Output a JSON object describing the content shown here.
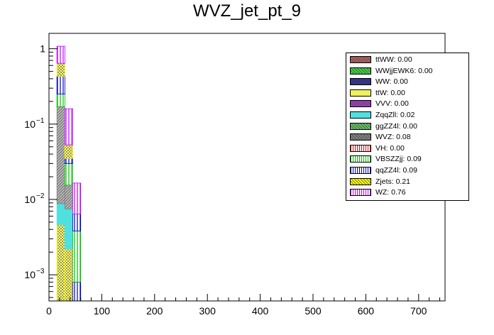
{
  "chart_data": {
    "type": "bar",
    "title": "WVZ_jet_pt_9",
    "xlabel": "",
    "ylabel": "",
    "stacked": true,
    "log_y": true,
    "xlim": [
      0,
      750
    ],
    "ylim": [
      0.00045,
      1.6
    ],
    "x_ticks": [
      "0",
      "100",
      "200",
      "300",
      "400",
      "500",
      "600",
      "700"
    ],
    "y_ticks": [
      {
        "value": 1,
        "label": "1"
      },
      {
        "value": 0.1,
        "label": "10",
        "exp": "−1"
      },
      {
        "value": 0.01,
        "label": "10",
        "exp": "−2"
      },
      {
        "value": 0.001,
        "label": "10",
        "exp": "−3"
      }
    ],
    "bin_edges": [
      15,
      30,
      45,
      60
    ],
    "series": [
      {
        "name": "ttWW: 0.00",
        "color": "#b06060",
        "values": [
          0.0,
          0.0,
          0.0
        ]
      },
      {
        "name": "WWjjEWK6: 0.00",
        "color": "#40d040",
        "values": [
          0.0,
          0.0,
          0.0
        ]
      },
      {
        "name": "WW: 0.00",
        "color": "#303090",
        "values": [
          0.0,
          0.0,
          0.0
        ]
      },
      {
        "name": "ttW: 0.00",
        "color": "#f0f060",
        "values": [
          0.0,
          0.0,
          0.0
        ]
      },
      {
        "name": "VVV: 0.00",
        "color": "#a040c0",
        "values": [
          0.0,
          0.0,
          0.0
        ]
      },
      {
        "name": "ZqqZll: 0.02",
        "color": "#50e0e0",
        "values": [
          0.0046,
          0.0054,
          0.0
        ]
      },
      {
        "name": "ggZZ4l: 0.00",
        "color": "#60c060",
        "values": [
          0.0,
          0.0,
          0.0
        ]
      },
      {
        "name": "WVZ: 0.08",
        "color": "#808080",
        "values": [
          0.0038,
          0.0,
          0.0
        ]
      },
      {
        "name": "VH: 0.00",
        "color": "#ff0000",
        "values": [
          0.0,
          0.0,
          0.0
        ]
      },
      {
        "name": "VBSZZjj: 0.09",
        "color": "#00c000",
        "values": [
          0.0,
          0.0,
          0.0
        ]
      },
      {
        "name": "qqZZ4l: 0.09",
        "color": "#0000c0",
        "values": [
          0.0,
          0.0,
          0.0008
        ]
      },
      {
        "name": "Zjets: 0.21",
        "color": "#ffff00",
        "values": [
          0.0,
          0.0,
          0.0
        ]
      },
      {
        "name": "WZ: 0.76",
        "color": "#c000ff",
        "values": [
          0.0,
          0.0,
          0.0
        ]
      }
    ],
    "bin_layers": [
      [
        {
          "series": "Zjets: 0.21",
          "y0": 0.00045,
          "y1": 0.0046
        },
        {
          "series": "ZqqZll: 0.02",
          "y0": 0.0046,
          "y1": 0.0088
        },
        {
          "series": "WVZ: 0.08",
          "y0": 0.0088,
          "y1": 0.17
        },
        {
          "series": "VBSZZjj: 0.09",
          "y0": 0.17,
          "y1": 0.25
        },
        {
          "series": "qqZZ4l: 0.09",
          "y0": 0.25,
          "y1": 0.43
        },
        {
          "series": "Zjets: 0.21",
          "y0": 0.43,
          "y1": 0.64
        },
        {
          "series": "WZ: 0.76",
          "y0": 0.64,
          "y1": 1.08
        }
      ],
      [
        {
          "series": "Zjets: 0.21",
          "y0": 0.00045,
          "y1": 0.0022
        },
        {
          "series": "ZqqZll: 0.02",
          "y0": 0.0022,
          "y1": 0.0075
        },
        {
          "series": "WVZ: 0.08",
          "y0": 0.0075,
          "y1": 0.0155
        },
        {
          "series": "VBSZZjj: 0.09",
          "y0": 0.0155,
          "y1": 0.03
        },
        {
          "series": "qqZZ4l: 0.09",
          "y0": 0.03,
          "y1": 0.035
        },
        {
          "series": "Zjets: 0.21",
          "y0": 0.035,
          "y1": 0.053
        },
        {
          "series": "WZ: 0.76",
          "y0": 0.053,
          "y1": 0.16
        }
      ],
      [
        {
          "series": "qqZZ4l: 0.09",
          "y0": 0.00045,
          "y1": 0.0008
        },
        {
          "series": "VBSZZjj: 0.09",
          "y0": 0.0008,
          "y1": 0.0038
        },
        {
          "series": "qqZZ4l: 0.09",
          "y0": 0.0038,
          "y1": 0.0064
        },
        {
          "series": "WZ: 0.76",
          "y0": 0.0064,
          "y1": 0.0165
        }
      ]
    ],
    "legend_position": "top-right"
  }
}
